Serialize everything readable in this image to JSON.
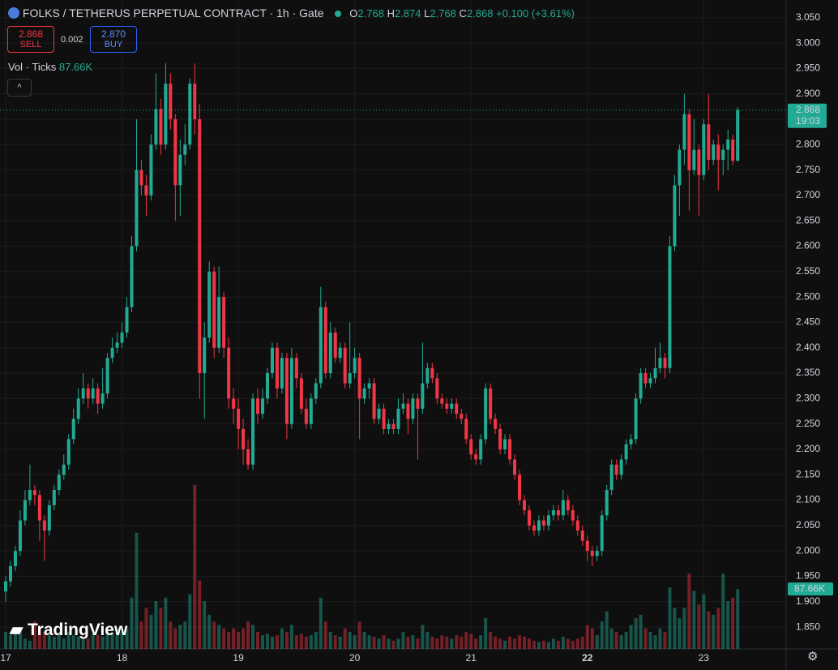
{
  "header": {
    "symbol": "FOLKS / TETHERUS PERPETUAL CONTRACT · 1h · Gate",
    "o_key": "O",
    "h_key": "H",
    "l_key": "L",
    "c_key": "C",
    "change": "+0.100 (+3.61%)",
    "sell_label": "SELL",
    "spread": "0.002",
    "buy_price": "2.870",
    "buy_label": "BUY",
    "volume_title": "Vol · Ticks",
    "volume_value": "87.66K",
    "countdown": "19:03",
    "volume_label": "87.66K",
    "watermark": "TradingView"
  },
  "chart_data": {
    "type": "candlestick",
    "open": [
      1.92,
      1.94,
      1.97,
      2.0,
      2.06,
      2.1,
      2.12,
      2.11,
      2.06,
      2.04,
      2.09,
      2.12,
      2.15,
      2.17,
      2.22,
      2.26,
      2.3,
      2.32,
      2.3,
      2.32,
      2.29,
      2.31,
      2.38,
      2.4,
      2.41,
      2.43,
      2.48,
      2.6,
      2.75,
      2.72,
      2.7,
      2.8,
      2.87,
      2.8,
      2.92,
      2.85,
      2.72,
      2.78,
      2.8,
      2.92,
      2.85,
      2.35,
      2.42,
      2.55,
      2.4,
      2.5,
      2.4,
      2.3,
      2.28,
      2.24,
      2.2,
      2.17,
      2.3,
      2.27,
      2.3,
      2.35,
      2.4,
      2.32,
      2.38,
      2.25,
      2.38,
      2.34,
      2.28,
      2.25,
      2.3,
      2.33,
      2.48,
      2.35,
      2.43,
      2.38,
      2.4,
      2.33,
      2.35,
      2.38,
      2.3,
      2.32,
      2.33,
      2.26,
      2.28,
      2.24,
      2.25,
      2.24,
      2.28,
      2.29,
      2.26,
      2.3,
      2.28,
      2.33,
      2.36,
      2.34,
      2.3,
      2.29,
      2.28,
      2.29,
      2.27,
      2.26,
      2.22,
      2.19,
      2.18,
      2.22,
      2.32,
      2.26,
      2.24,
      2.2,
      2.22,
      2.18,
      2.15,
      2.1,
      2.08,
      2.05,
      2.04,
      2.06,
      2.05,
      2.07,
      2.08,
      2.07,
      2.1,
      2.08,
      2.06,
      2.04,
      2.02,
      2.0,
      1.99,
      2.0,
      2.07,
      2.12,
      2.17,
      2.15,
      2.18,
      2.21,
      2.22,
      2.3,
      2.35,
      2.33,
      2.34,
      2.36,
      2.38,
      2.36,
      2.6,
      2.72,
      2.79,
      2.86,
      2.75,
      2.79,
      2.74,
      2.84,
      2.77,
      2.8,
      2.77,
      2.79,
      2.81,
      2.768
    ],
    "high": [
      1.95,
      1.98,
      2.01,
      2.08,
      2.12,
      2.17,
      2.13,
      2.12,
      2.07,
      2.1,
      2.13,
      2.16,
      2.19,
      2.23,
      2.28,
      2.32,
      2.35,
      2.33,
      2.34,
      2.33,
      2.36,
      2.39,
      2.42,
      2.43,
      2.45,
      2.5,
      2.62,
      2.85,
      2.77,
      2.74,
      2.82,
      2.94,
      2.89,
      2.96,
      2.94,
      2.86,
      2.81,
      2.84,
      2.93,
      2.96,
      2.88,
      2.45,
      2.57,
      2.56,
      2.56,
      2.51,
      2.42,
      2.32,
      2.3,
      2.26,
      2.22,
      2.31,
      2.32,
      2.32,
      2.36,
      2.41,
      2.41,
      2.39,
      2.39,
      2.4,
      2.39,
      2.35,
      2.3,
      2.31,
      2.34,
      2.52,
      2.49,
      2.45,
      2.44,
      2.41,
      2.41,
      2.45,
      2.4,
      2.39,
      2.33,
      2.34,
      2.34,
      2.29,
      2.29,
      2.26,
      2.26,
      2.3,
      2.31,
      2.3,
      2.31,
      2.31,
      2.41,
      2.37,
      2.37,
      2.35,
      2.31,
      2.3,
      2.3,
      2.3,
      2.28,
      2.27,
      2.23,
      2.2,
      2.23,
      2.33,
      2.33,
      2.27,
      2.25,
      2.23,
      2.23,
      2.19,
      2.16,
      2.11,
      2.09,
      2.06,
      2.07,
      2.07,
      2.08,
      2.09,
      2.09,
      2.12,
      2.11,
      2.09,
      2.07,
      2.05,
      2.03,
      2.01,
      2.01,
      2.08,
      2.13,
      2.18,
      2.18,
      2.19,
      2.22,
      2.23,
      2.31,
      2.36,
      2.36,
      2.35,
      2.4,
      2.41,
      2.39,
      2.62,
      2.74,
      2.8,
      2.9,
      2.87,
      2.85,
      2.8,
      2.85,
      2.9,
      2.81,
      2.82,
      2.8,
      2.83,
      2.82,
      2.874
    ],
    "low": [
      1.9,
      1.93,
      1.96,
      1.99,
      2.05,
      2.09,
      2.09,
      2.02,
      1.98,
      2.03,
      2.08,
      2.11,
      2.14,
      2.16,
      2.21,
      2.25,
      2.29,
      2.28,
      2.29,
      2.27,
      2.28,
      2.3,
      2.37,
      2.39,
      2.4,
      2.42,
      2.47,
      2.59,
      2.7,
      2.66,
      2.69,
      2.79,
      2.78,
      2.79,
      2.83,
      2.65,
      2.66,
      2.76,
      2.79,
      2.82,
      2.3,
      2.26,
      2.41,
      2.38,
      2.39,
      2.38,
      2.28,
      2.25,
      2.2,
      2.17,
      2.16,
      2.16,
      2.25,
      2.26,
      2.29,
      2.34,
      2.3,
      2.31,
      2.22,
      2.24,
      2.32,
      2.27,
      2.24,
      2.24,
      2.29,
      2.32,
      2.34,
      2.34,
      2.37,
      2.37,
      2.32,
      2.32,
      2.34,
      2.22,
      2.29,
      2.3,
      2.25,
      2.25,
      2.23,
      2.23,
      2.23,
      2.23,
      2.27,
      2.23,
      2.25,
      2.18,
      2.27,
      2.32,
      2.33,
      2.29,
      2.28,
      2.27,
      2.27,
      2.26,
      2.25,
      2.21,
      2.18,
      2.17,
      2.17,
      2.21,
      2.25,
      2.23,
      2.19,
      2.19,
      2.17,
      2.14,
      2.09,
      2.07,
      2.04,
      2.03,
      2.03,
      2.04,
      2.04,
      2.06,
      2.06,
      2.06,
      2.07,
      2.05,
      2.03,
      2.01,
      1.98,
      1.97,
      1.98,
      1.99,
      2.06,
      2.11,
      2.14,
      2.14,
      2.17,
      2.2,
      2.21,
      2.29,
      2.32,
      2.32,
      2.33,
      2.35,
      2.34,
      2.35,
      2.59,
      2.66,
      2.76,
      2.67,
      2.74,
      2.66,
      2.73,
      2.75,
      2.76,
      2.71,
      2.74,
      2.75,
      2.76,
      2.768
    ],
    "close": [
      1.94,
      1.97,
      2.0,
      2.06,
      2.1,
      2.12,
      2.11,
      2.06,
      2.04,
      2.09,
      2.12,
      2.15,
      2.17,
      2.22,
      2.26,
      2.3,
      2.32,
      2.3,
      2.32,
      2.29,
      2.31,
      2.38,
      2.4,
      2.41,
      2.43,
      2.48,
      2.6,
      2.75,
      2.72,
      2.7,
      2.8,
      2.87,
      2.8,
      2.92,
      2.85,
      2.72,
      2.78,
      2.8,
      2.92,
      2.85,
      2.35,
      2.42,
      2.55,
      2.4,
      2.5,
      2.4,
      2.3,
      2.28,
      2.24,
      2.2,
      2.17,
      2.3,
      2.27,
      2.3,
      2.35,
      2.4,
      2.32,
      2.38,
      2.25,
      2.38,
      2.34,
      2.28,
      2.25,
      2.3,
      2.33,
      2.48,
      2.35,
      2.43,
      2.38,
      2.4,
      2.33,
      2.35,
      2.38,
      2.3,
      2.32,
      2.33,
      2.26,
      2.28,
      2.24,
      2.25,
      2.24,
      2.28,
      2.29,
      2.26,
      2.3,
      2.28,
      2.33,
      2.36,
      2.34,
      2.3,
      2.29,
      2.28,
      2.29,
      2.27,
      2.26,
      2.22,
      2.19,
      2.18,
      2.22,
      2.32,
      2.26,
      2.24,
      2.2,
      2.22,
      2.18,
      2.15,
      2.1,
      2.08,
      2.05,
      2.04,
      2.06,
      2.05,
      2.07,
      2.08,
      2.07,
      2.1,
      2.08,
      2.06,
      2.04,
      2.02,
      2.0,
      1.99,
      2.0,
      2.07,
      2.12,
      2.17,
      2.15,
      2.18,
      2.21,
      2.22,
      2.3,
      2.35,
      2.33,
      2.34,
      2.36,
      2.38,
      2.36,
      2.6,
      2.72,
      2.79,
      2.86,
      2.75,
      2.79,
      2.74,
      2.84,
      2.77,
      2.8,
      2.77,
      2.79,
      2.81,
      2.768,
      2.868
    ],
    "volume": [
      25,
      20,
      30,
      28,
      15,
      12,
      40,
      30,
      25,
      20,
      18,
      22,
      15,
      25,
      20,
      18,
      16,
      15,
      22,
      20,
      18,
      25,
      22,
      30,
      25,
      30,
      75,
      170,
      40,
      60,
      50,
      70,
      60,
      75,
      40,
      30,
      35,
      40,
      80,
      240,
      100,
      70,
      50,
      40,
      35,
      30,
      25,
      30,
      25,
      30,
      40,
      35,
      25,
      20,
      22,
      18,
      20,
      30,
      25,
      35,
      20,
      22,
      18,
      20,
      25,
      75,
      40,
      25,
      20,
      18,
      30,
      25,
      20,
      40,
      25,
      20,
      18,
      15,
      20,
      15,
      12,
      15,
      25,
      18,
      20,
      15,
      35,
      25,
      18,
      15,
      20,
      18,
      15,
      20,
      18,
      25,
      22,
      15,
      20,
      45,
      25,
      18,
      15,
      12,
      18,
      15,
      20,
      18,
      15,
      12,
      10,
      12,
      10,
      15,
      12,
      18,
      15,
      12,
      15,
      18,
      35,
      30,
      20,
      40,
      55,
      30,
      25,
      20,
      25,
      35,
      45,
      50,
      30,
      25,
      20,
      30,
      25,
      90,
      60,
      45,
      60,
      110,
      85,
      65,
      80,
      55,
      50,
      60,
      110,
      70,
      75,
      87.66
    ],
    "xlim": [
      -1.17,
      161
    ],
    "ylim": [
      1.807,
      3.072
    ],
    "volume_lim": [
      0,
      940
    ],
    "yticks": [
      {
        "value": 1.85,
        "label": "1.850"
      },
      {
        "value": 1.9,
        "label": "1.900"
      },
      {
        "value": 1.95,
        "label": "1.950"
      },
      {
        "value": 2.0,
        "label": "2.000"
      },
      {
        "value": 2.05,
        "label": "2.050"
      },
      {
        "value": 2.1,
        "label": "2.100"
      },
      {
        "value": 2.15,
        "label": "2.150"
      },
      {
        "value": 2.2,
        "label": "2.200"
      },
      {
        "value": 2.25,
        "label": "2.250"
      },
      {
        "value": 2.3,
        "label": "2.300"
      },
      {
        "value": 2.35,
        "label": "2.350"
      },
      {
        "value": 2.4,
        "label": "2.400"
      },
      {
        "value": 2.45,
        "label": "2.450"
      },
      {
        "value": 2.5,
        "label": "2.500"
      },
      {
        "value": 2.55,
        "label": "2.550"
      },
      {
        "value": 2.6,
        "label": "2.600"
      },
      {
        "value": 2.65,
        "label": "2.650"
      },
      {
        "value": 2.7,
        "label": "2.700"
      },
      {
        "value": 2.75,
        "label": "2.750"
      },
      {
        "value": 2.8,
        "label": "2.800"
      },
      {
        "value": 2.85,
        "label": "2.850"
      },
      {
        "value": 2.9,
        "label": "2.900"
      },
      {
        "value": 2.95,
        "label": "2.950"
      },
      {
        "value": 3.0,
        "label": "3.000"
      },
      {
        "value": 3.05,
        "label": "3.050"
      }
    ],
    "xticks": [
      {
        "value": 0,
        "label": "17"
      },
      {
        "value": 24,
        "label": "18"
      },
      {
        "value": 48,
        "label": "19"
      },
      {
        "value": 72,
        "label": "20"
      },
      {
        "value": 96,
        "label": "21"
      },
      {
        "value": 120,
        "label": "22"
      },
      {
        "value": 144,
        "label": "23"
      }
    ],
    "up_color": "#22ab94",
    "down_color": "#f23645",
    "grid": true
  }
}
